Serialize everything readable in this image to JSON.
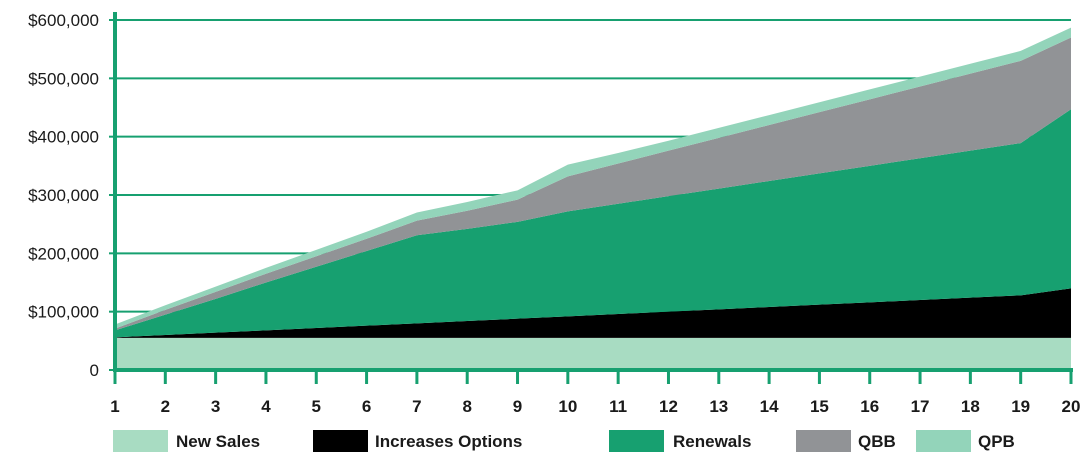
{
  "chart_data": {
    "type": "area",
    "stacked": true,
    "x": [
      1,
      2,
      3,
      4,
      5,
      6,
      7,
      8,
      9,
      10,
      11,
      12,
      13,
      14,
      15,
      16,
      17,
      18,
      19,
      20
    ],
    "x_tick_labels": [
      "1",
      "2",
      "3",
      "4",
      "5",
      "6",
      "7",
      "8",
      "9",
      "10",
      "11",
      "12",
      "13",
      "14",
      "15",
      "16",
      "17",
      "18",
      "19",
      "20"
    ],
    "ylim": [
      0,
      600000
    ],
    "y_ticks": [
      0,
      100000,
      200000,
      300000,
      400000,
      500000,
      600000
    ],
    "y_tick_labels": [
      "0",
      "$100,000",
      "$200,000",
      "$300,000",
      "$400,000",
      "$500,000",
      "$600,000"
    ],
    "grid": "horizontal",
    "legend_position": "bottom",
    "series": [
      {
        "name": "New Sales",
        "color": "#a8dcc2",
        "values": [
          55000,
          55000,
          55000,
          55000,
          55000,
          55000,
          55000,
          55000,
          55000,
          55000,
          55000,
          55000,
          55000,
          55000,
          55000,
          55000,
          55000,
          55000,
          55000,
          55000
        ]
      },
      {
        "name": "Increases Options",
        "color": "#000000",
        "values": [
          1000,
          5000,
          9000,
          13000,
          17000,
          21000,
          25000,
          29000,
          33000,
          37000,
          41000,
          45000,
          49000,
          53000,
          57000,
          61000,
          65000,
          69000,
          73000,
          85000
        ]
      },
      {
        "name": "Renewals",
        "color": "#17a070",
        "values": [
          12000,
          35000,
          58000,
          82000,
          105000,
          128000,
          151000,
          158000,
          166000,
          180000,
          189000,
          198000,
          207000,
          216000,
          225000,
          234000,
          243000,
          252000,
          261000,
          307000
        ]
      },
      {
        "name": "QBB",
        "color": "#919396",
        "values": [
          3000,
          8000,
          12000,
          15000,
          18000,
          21000,
          25000,
          31000,
          38000,
          60000,
          69000,
          78000,
          87000,
          96000,
          105000,
          114000,
          123000,
          132000,
          141000,
          123000
        ]
      },
      {
        "name": "QPB",
        "color": "#93d4ba",
        "values": [
          7000,
          8000,
          9000,
          10000,
          11000,
          12000,
          14000,
          15000,
          16000,
          20000,
          18000,
          17000,
          17000,
          17000,
          17000,
          17000,
          17000,
          17000,
          17000,
          17000
        ]
      }
    ]
  },
  "colors": {
    "axis": "#17a070",
    "grid": "#17a070"
  }
}
